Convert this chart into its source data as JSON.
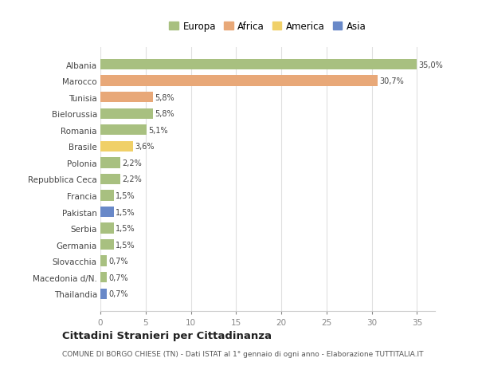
{
  "countries": [
    "Albania",
    "Marocco",
    "Tunisia",
    "Bielorussia",
    "Romania",
    "Brasile",
    "Polonia",
    "Repubblica Ceca",
    "Francia",
    "Pakistan",
    "Serbia",
    "Germania",
    "Slovacchia",
    "Macedonia d/N.",
    "Thailandia"
  ],
  "values": [
    35.0,
    30.7,
    5.8,
    5.8,
    5.1,
    3.6,
    2.2,
    2.2,
    1.5,
    1.5,
    1.5,
    1.5,
    0.7,
    0.7,
    0.7
  ],
  "labels": [
    "35,0%",
    "30,7%",
    "5,8%",
    "5,8%",
    "5,1%",
    "3,6%",
    "2,2%",
    "2,2%",
    "1,5%",
    "1,5%",
    "1,5%",
    "1,5%",
    "0,7%",
    "0,7%",
    "0,7%"
  ],
  "colors": [
    "#a8c080",
    "#e8a878",
    "#e8a878",
    "#a8c080",
    "#a8c080",
    "#f0d068",
    "#a8c080",
    "#a8c080",
    "#a8c080",
    "#6888c8",
    "#a8c080",
    "#a8c080",
    "#a8c080",
    "#a8c080",
    "#6888c8"
  ],
  "legend_labels": [
    "Europa",
    "Africa",
    "America",
    "Asia"
  ],
  "legend_colors": [
    "#a8c080",
    "#e8a878",
    "#f0d068",
    "#6888c8"
  ],
  "title": "Cittadini Stranieri per Cittadinanza",
  "subtitle": "COMUNE DI BORGO CHIESE (TN) - Dati ISTAT al 1° gennaio di ogni anno - Elaborazione TUTTITALIA.IT",
  "xlim": [
    0,
    37
  ],
  "xticks": [
    0,
    5,
    10,
    15,
    20,
    25,
    30,
    35
  ],
  "background_color": "#ffffff",
  "grid_color": "#e0e0e0",
  "bar_height": 0.65
}
